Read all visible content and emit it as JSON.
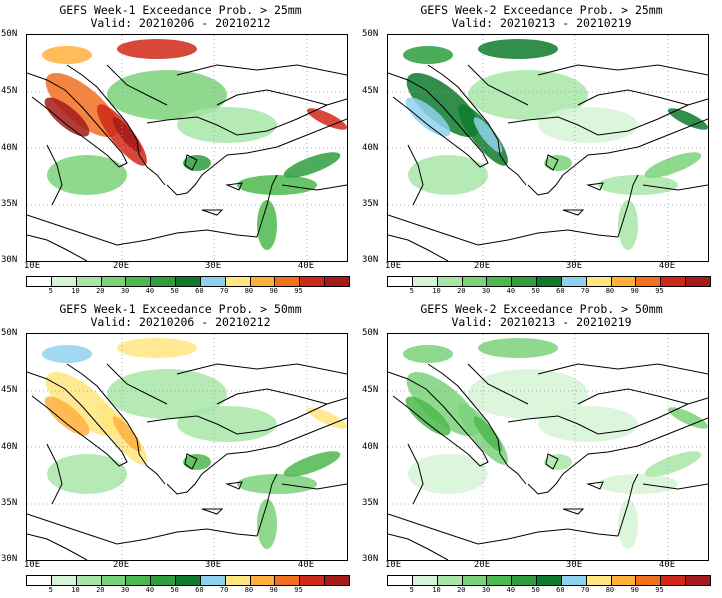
{
  "colorbar": {
    "ticks": [
      "5",
      "10",
      "20",
      "30",
      "40",
      "50",
      "60",
      "70",
      "80",
      "90",
      "95"
    ],
    "colors": [
      "#ffffff",
      "#d6f5d6",
      "#a8e6a8",
      "#7ad27a",
      "#4db84d",
      "#2e9e3e",
      "#0e7a2c",
      "#8fd2ee",
      "#ffe680",
      "#ffb03b",
      "#f07020",
      "#d02818",
      "#a51a1a"
    ]
  },
  "axes": {
    "lat_labels": [
      "50N",
      "45N",
      "40N",
      "35N",
      "30N"
    ],
    "lon_labels": [
      "10E",
      "20E",
      "30E",
      "40E"
    ]
  },
  "panels": [
    {
      "title": "GEFS Week-1 Exceedance Prob. > 25mm",
      "valid": "Valid: 20210206 - 20210212",
      "intensity": 1.0
    },
    {
      "title": "GEFS Week-2 Exceedance Prob. > 25mm",
      "valid": "Valid: 20210213 - 20210219",
      "intensity": 0.55
    },
    {
      "title": "GEFS Week-1 Exceedance Prob. > 50mm",
      "valid": "Valid: 20210206 - 20210212",
      "intensity": 0.75
    },
    {
      "title": "GEFS Week-2 Exceedance Prob. > 50mm",
      "valid": "Valid: 20210213 - 20210219",
      "intensity": 0.3
    }
  ]
}
